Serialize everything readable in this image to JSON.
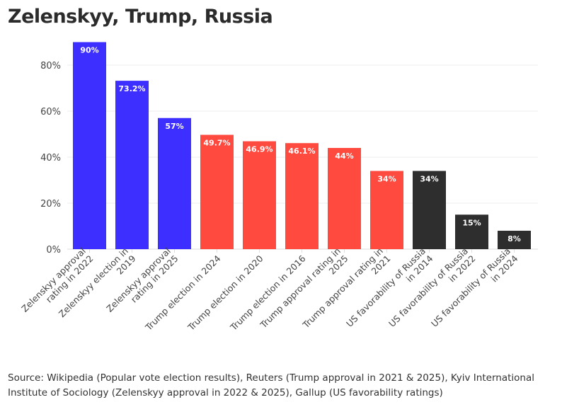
{
  "title": "Zelenskyy, Trump, Russia",
  "source": "Source: Wikipedia (Popular vote election results), Reuters (Trump approval in 2021 & 2025), Kyiv International Institute of Sociology (Zelenskyy approval in 2022 & 2025), Gallup (US favorability ratings)",
  "chart_data": {
    "type": "bar",
    "title": "Zelenskyy, Trump, Russia",
    "xlabel": "",
    "ylabel": "",
    "ylim": [
      0,
      90
    ],
    "yticks": [
      0,
      20,
      40,
      60,
      80
    ],
    "ytick_labels": [
      "0%",
      "20%",
      "40%",
      "60%",
      "80%"
    ],
    "grid": true,
    "categories": [
      [
        "Zelenskyy approval",
        "rating in 2022"
      ],
      [
        "Zelenskyy election in",
        "2019"
      ],
      [
        "Zelenskyy approval",
        "rating in 2025"
      ],
      [
        "Trump election in 2024"
      ],
      [
        "Trump election in 2020"
      ],
      [
        "Trump election in 2016"
      ],
      [
        "Trump approval rating in",
        "2025"
      ],
      [
        "Trump approval rating in",
        "2021"
      ],
      [
        "US favorability of Russia",
        "in 2014"
      ],
      [
        "US favorability of Russia",
        "in 2022"
      ],
      [
        "US favorability of Russia",
        "in 2024"
      ]
    ],
    "values": [
      90,
      73.2,
      57,
      49.7,
      46.9,
      46.1,
      44,
      34,
      34,
      15,
      8
    ],
    "data_labels": [
      "90%",
      "73.2%",
      "57%",
      "49.7%",
      "46.9%",
      "46.1%",
      "44%",
      "34%",
      "34%",
      "15%",
      "8%"
    ],
    "colors": [
      "#3d2fff",
      "#3d2fff",
      "#3d2fff",
      "#ff4a40",
      "#ff4a40",
      "#ff4a40",
      "#ff4a40",
      "#ff4a40",
      "#2e2e2e",
      "#2e2e2e",
      "#2e2e2e"
    ]
  }
}
